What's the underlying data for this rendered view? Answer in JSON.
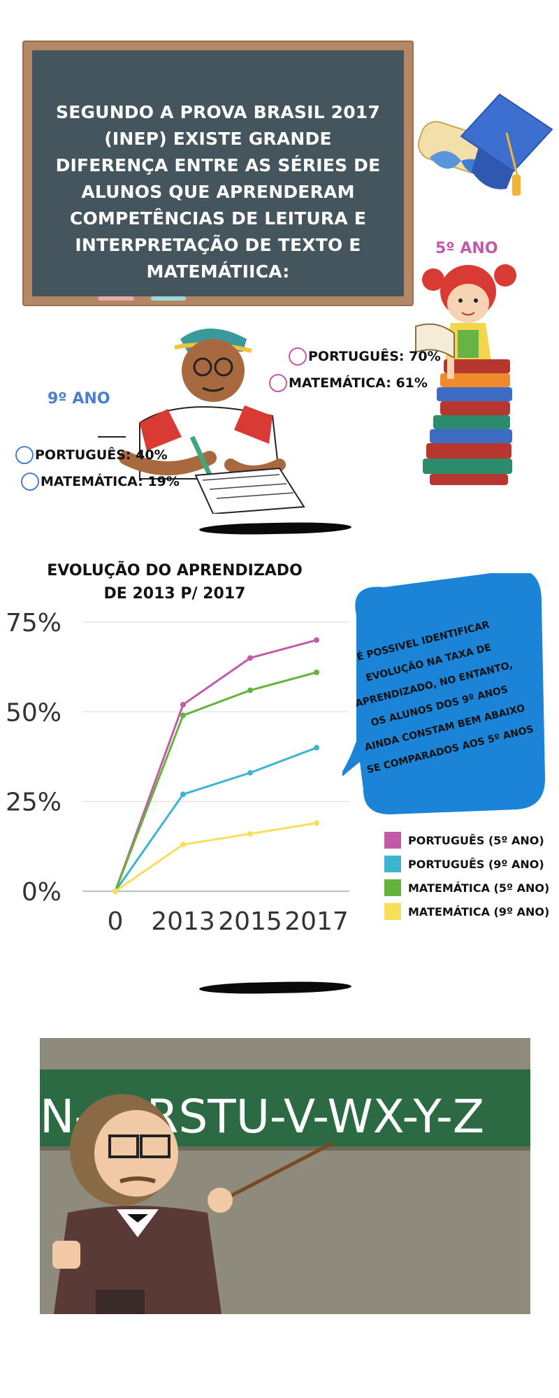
{
  "board": {
    "title": "SEGUNDO A PROVA BRASIL 2017 (INEP) EXISTE GRANDE DIFERENÇA ENTRE AS SÉRIES DE ALUNOS QUE APRENDERAM COMPETÊNCIAS DE LEITURA E INTERPRETAÇÃO DE TEXTO E MATEMÁTIICA:"
  },
  "grade5": {
    "label": "5º ANO",
    "color": "#c35aa8",
    "portugues": "PORTUGUÊS: 70%",
    "matematica": "MATEMÁTICA: 61%"
  },
  "grade9": {
    "label": "9º ANO",
    "color": "#4a7fd0",
    "portugues": "PORTUGUÊS: 40%",
    "matematica": "MATEMÁTICA: 19%"
  },
  "bubble": {
    "text": "É POSSIVEL IDENTIFICAR EVOLUÇÃO NA TAXA DE APRENDIZADO, NO ENTANTO, OS ALUNOS DOS 9º ANOS AINDA CONSTAM BEM ABAIXO SE COMPARADOS AOS 5º ANOS",
    "color": "#1b84d6"
  },
  "chalkboard_letters": "N-O-RSTU-V-WX-Y-Z",
  "chart_data": {
    "type": "line",
    "title": "EVOLUÇÃO DO APRENDIZADO DE 2013 P/ 2017",
    "categories": [
      "0",
      "2013",
      "2015",
      "2017"
    ],
    "y_ticks": [
      "0%",
      "25%",
      "50%",
      "75%"
    ],
    "ylim": [
      0,
      75
    ],
    "grid": true,
    "legend_position": "right",
    "series": [
      {
        "name": "PORTUGUÊS (5º ANO)",
        "color": "#c35aa8",
        "values": [
          0,
          52,
          65,
          70
        ]
      },
      {
        "name": "PORTUGUÊS (9º ANO)",
        "color": "#3fb4d0",
        "values": [
          0,
          27,
          33,
          40
        ]
      },
      {
        "name": "MATEMÁTICA (5º ANO)",
        "color": "#64b33a",
        "values": [
          0,
          49,
          56,
          61
        ]
      },
      {
        "name": "MATEMÁTICA (9º ANO)",
        "color": "#f7df5a",
        "values": [
          0,
          13,
          16,
          19
        ]
      }
    ]
  }
}
